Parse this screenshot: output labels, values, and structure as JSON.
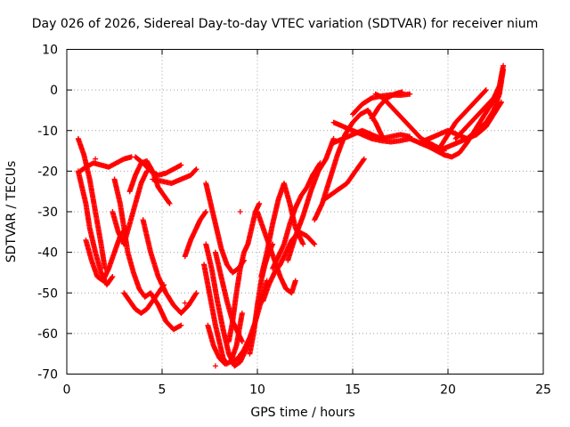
{
  "chart_data": {
    "type": "scatter",
    "title": "Day 026 of 2026, Sidereal Day-to-day VTEC variation (SDTVAR) for receiver nium",
    "xlabel": "GPS time / hours",
    "ylabel": "SDTVAR / TECUs",
    "xlim": [
      0,
      25
    ],
    "ylim": [
      -70,
      10
    ],
    "x_ticks": [
      "0",
      "5",
      "10",
      "15",
      "20",
      "25"
    ],
    "y_ticks": [
      "10",
      "0",
      "-10",
      "-20",
      "-30",
      "-40",
      "-50",
      "-60",
      "-70"
    ],
    "grid": true,
    "marker": "+",
    "color": "#ff0000",
    "series": [
      {
        "x": [
          0.6,
          0.9,
          1.2,
          1.5,
          1.8,
          2.0
        ],
        "y": [
          -12,
          -16,
          -22,
          -30,
          -38,
          -44
        ]
      },
      {
        "x": [
          0.6,
          0.8,
          1.0,
          1.2,
          1.5,
          1.8,
          2.1,
          2.4
        ],
        "y": [
          -20,
          -24,
          -28,
          -34,
          -40,
          -45,
          -48,
          -46
        ]
      },
      {
        "x": [
          0.7,
          1.0,
          1.4,
          1.8,
          2.2,
          2.6,
          3.0,
          3.4
        ],
        "y": [
          -20,
          -19,
          -18,
          -18.5,
          -19,
          -18,
          -17,
          -16.5
        ]
      },
      {
        "x": [
          2.5,
          2.8,
          3.0,
          3.2,
          3.5,
          3.8,
          4.1,
          4.4,
          4.8,
          5.2,
          5.6,
          6.0
        ],
        "y": [
          -22,
          -28,
          -34,
          -40,
          -45,
          -49,
          -51,
          -50,
          -53,
          -57,
          -59,
          -58
        ]
      },
      {
        "x": [
          3.6,
          4.0,
          4.4,
          4.8,
          5.2,
          5.6,
          6.0
        ],
        "y": [
          -16.5,
          -18,
          -20,
          -21,
          -20.5,
          -19.5,
          -18.5
        ]
      },
      {
        "x": [
          2.4,
          2.7,
          3.0,
          3.3,
          3.6,
          3.9,
          4.2
        ],
        "y": [
          -30,
          -35,
          -38,
          -33,
          -28,
          -23,
          -20
        ]
      },
      {
        "x": [
          1.0,
          1.3,
          1.6,
          1.9,
          2.2,
          2.5,
          2.8,
          3.1
        ],
        "y": [
          -37,
          -42,
          -46,
          -47,
          -44,
          -40,
          -36,
          -34
        ]
      },
      {
        "x": [
          3.0,
          3.3,
          3.6,
          3.9,
          4.2,
          4.5,
          4.8,
          5.1
        ],
        "y": [
          -50,
          -52,
          -54,
          -55,
          -54,
          -52,
          -50,
          -48
        ]
      },
      {
        "x": [
          3.3,
          3.6,
          3.9,
          4.2,
          4.5,
          4.8,
          5.1,
          5.4
        ],
        "y": [
          -25,
          -21,
          -18,
          -17.5,
          -20,
          -24,
          -26,
          -28
        ]
      },
      {
        "x": [
          4.0,
          4.4,
          4.8,
          5.2,
          5.6,
          6.0,
          6.4,
          6.8
        ],
        "y": [
          -32,
          -40,
          -46,
          -50,
          -53,
          -55,
          -53,
          -50
        ]
      },
      {
        "x": [
          4.5,
          5.0,
          5.5,
          6.0,
          6.5,
          6.8
        ],
        "y": [
          -22,
          -22.5,
          -23,
          -22,
          -21,
          -19.5
        ]
      },
      {
        "x": [
          6.2,
          6.5,
          6.8,
          7.0,
          7.3
        ],
        "y": [
          -41,
          -37,
          -34,
          -32,
          -30
        ]
      },
      {
        "x": [
          7.3,
          7.5,
          7.7,
          7.9,
          8.1,
          8.4,
          8.7,
          9.0,
          9.3
        ],
        "y": [
          -23,
          -27,
          -31,
          -35,
          -39,
          -43,
          -45,
          -44,
          -42
        ]
      },
      {
        "x": [
          7.2,
          7.4,
          7.6,
          7.8,
          8.0,
          8.2,
          8.4
        ],
        "y": [
          -43,
          -48,
          -53,
          -58,
          -62,
          -66,
          -67.5
        ]
      },
      {
        "x": [
          7.3,
          7.6,
          7.9,
          8.2,
          8.5,
          8.8,
          9.1,
          9.4,
          9.7
        ],
        "y": [
          -38,
          -44,
          -52,
          -59,
          -65,
          -68,
          -67,
          -64,
          -60
        ]
      },
      {
        "x": [
          7.4,
          7.7,
          8.0,
          8.3,
          8.6,
          8.9,
          9.2
        ],
        "y": [
          -58,
          -63,
          -66,
          -67.5,
          -67,
          -63,
          -55
        ]
      },
      {
        "x": [
          7.8,
          8.1,
          8.4,
          8.7,
          9.0,
          9.2
        ],
        "y": [
          -40,
          -46,
          -52,
          -57,
          -60,
          -62
        ]
      },
      {
        "x": [
          8.5,
          8.7,
          8.9,
          9.1,
          9.3,
          9.5,
          9.7,
          9.9,
          10.1
        ],
        "y": [
          -62,
          -57,
          -50,
          -44,
          -40,
          -38,
          -34,
          -30,
          -28
        ]
      },
      {
        "x": [
          8.7,
          9.0,
          9.3,
          9.6,
          9.9,
          10.2,
          10.5
        ],
        "y": [
          -67,
          -66,
          -64,
          -61,
          -57,
          -52,
          -47
        ]
      },
      {
        "x": [
          9.6,
          9.8,
          10.0,
          10.2,
          10.4,
          10.6,
          10.8
        ],
        "y": [
          -65,
          -60,
          -53,
          -47,
          -43,
          -40,
          -38
        ]
      },
      {
        "x": [
          10.0,
          10.3,
          10.6,
          10.9,
          11.2,
          11.5,
          11.8,
          12.0
        ],
        "y": [
          -30,
          -34,
          -38,
          -42,
          -46,
          -49,
          -50,
          -47
        ]
      },
      {
        "x": [
          10.2,
          10.5,
          10.8,
          11.1,
          11.4,
          11.7,
          12.0,
          12.4
        ],
        "y": [
          -46,
          -40,
          -33,
          -27,
          -23,
          -28,
          -34,
          -38
        ]
      },
      {
        "x": [
          10.3,
          10.6,
          10.9,
          11.2,
          11.5,
          11.8,
          12.2,
          12.6,
          13.0
        ],
        "y": [
          -52,
          -48,
          -45,
          -43,
          -40,
          -37,
          -35,
          -36,
          -38
        ]
      },
      {
        "x": [
          10.8,
          11.1,
          11.4,
          11.7,
          12.0,
          12.3,
          12.6,
          12.9,
          13.3
        ],
        "y": [
          -44,
          -41,
          -38,
          -33,
          -29,
          -26,
          -24,
          -21,
          -18
        ]
      },
      {
        "x": [
          11.6,
          12.0,
          12.4,
          12.8,
          13.2,
          13.6,
          14.0
        ],
        "y": [
          -42,
          -36,
          -31,
          -25,
          -20,
          -17,
          -12
        ]
      },
      {
        "x": [
          13.0,
          13.4,
          13.8,
          14.2,
          14.6,
          15.0,
          15.4,
          15.8,
          16.2,
          16.6
        ],
        "y": [
          -32,
          -28,
          -22,
          -16,
          -11,
          -8,
          -6,
          -5,
          -8,
          -12
        ]
      },
      {
        "x": [
          13.5,
          13.8,
          14.1,
          14.4,
          14.7,
          15.0,
          15.3,
          15.6
        ],
        "y": [
          -27,
          -26,
          -25,
          -24,
          -23,
          -21,
          -19,
          -17
        ]
      },
      {
        "x": [
          14.0,
          14.5,
          15.0,
          15.5,
          16.0,
          16.5,
          17.0,
          17.5,
          18.0,
          18.5,
          19.0,
          19.5
        ],
        "y": [
          -8,
          -9,
          -10,
          -11,
          -12,
          -12.5,
          -12.8,
          -12.5,
          -12,
          -13,
          -14,
          -15
        ]
      },
      {
        "x": [
          14.0,
          14.5,
          15.0,
          15.5,
          16.0,
          16.5,
          17.0,
          17.5,
          18.0
        ],
        "y": [
          -13,
          -12,
          -11,
          -10,
          -11,
          -12,
          -11.5,
          -11,
          -11.5
        ]
      },
      {
        "x": [
          15.0,
          15.5,
          16.0,
          16.5,
          17.0,
          17.5,
          18.0
        ],
        "y": [
          -6,
          -3.5,
          -2,
          -1.5,
          -1.2,
          -1.3,
          -1
        ]
      },
      {
        "x": [
          16.2,
          16.6,
          17.0,
          17.4,
          17.8,
          18.2,
          18.6,
          19.0,
          19.4,
          19.8
        ],
        "y": [
          -1,
          -2,
          -4,
          -6,
          -8,
          -10,
          -12,
          -13,
          -14,
          -15
        ]
      },
      {
        "x": [
          19.0,
          19.4,
          19.8,
          20.2,
          20.6,
          21.0,
          21.4,
          21.8,
          22.2,
          22.6,
          22.8
        ],
        "y": [
          -14,
          -15,
          -16,
          -16.5,
          -15.5,
          -13,
          -10,
          -7,
          -4,
          -1,
          2
        ]
      },
      {
        "x": [
          18.5,
          19.0,
          19.5,
          20.0,
          20.5,
          21.0,
          21.5,
          22.0,
          22.4,
          22.8
        ],
        "y": [
          -13,
          -12,
          -11,
          -10,
          -11,
          -12,
          -11,
          -9,
          -6,
          -3
        ]
      },
      {
        "x": [
          19.5,
          20.0,
          20.5,
          21.0,
          21.5,
          22.0,
          22.4,
          22.7,
          22.9
        ],
        "y": [
          -15,
          -14,
          -13,
          -12,
          -10,
          -8,
          -5,
          -1,
          5
        ]
      },
      {
        "x": [
          20.4,
          20.8,
          21.2,
          21.6,
          22.0,
          22.4,
          22.7,
          22.9
        ],
        "y": [
          -12,
          -10,
          -8,
          -6,
          -4,
          -2,
          1,
          6
        ]
      },
      {
        "x": [
          19.6,
          20.0,
          20.4,
          20.8,
          21.2,
          21.6,
          22.0
        ],
        "y": [
          -14,
          -11,
          -8,
          -6,
          -4,
          -2,
          0
        ]
      },
      {
        "x": [
          16.0,
          16.4,
          16.8,
          17.2,
          17.6
        ],
        "y": [
          -7,
          -4,
          -2,
          -1,
          -0.5
        ]
      },
      {
        "x": [
          1.5,
          6.2,
          9.1,
          7.8
        ],
        "y": [
          -17,
          -52.5,
          -30,
          -68
        ]
      }
    ]
  }
}
